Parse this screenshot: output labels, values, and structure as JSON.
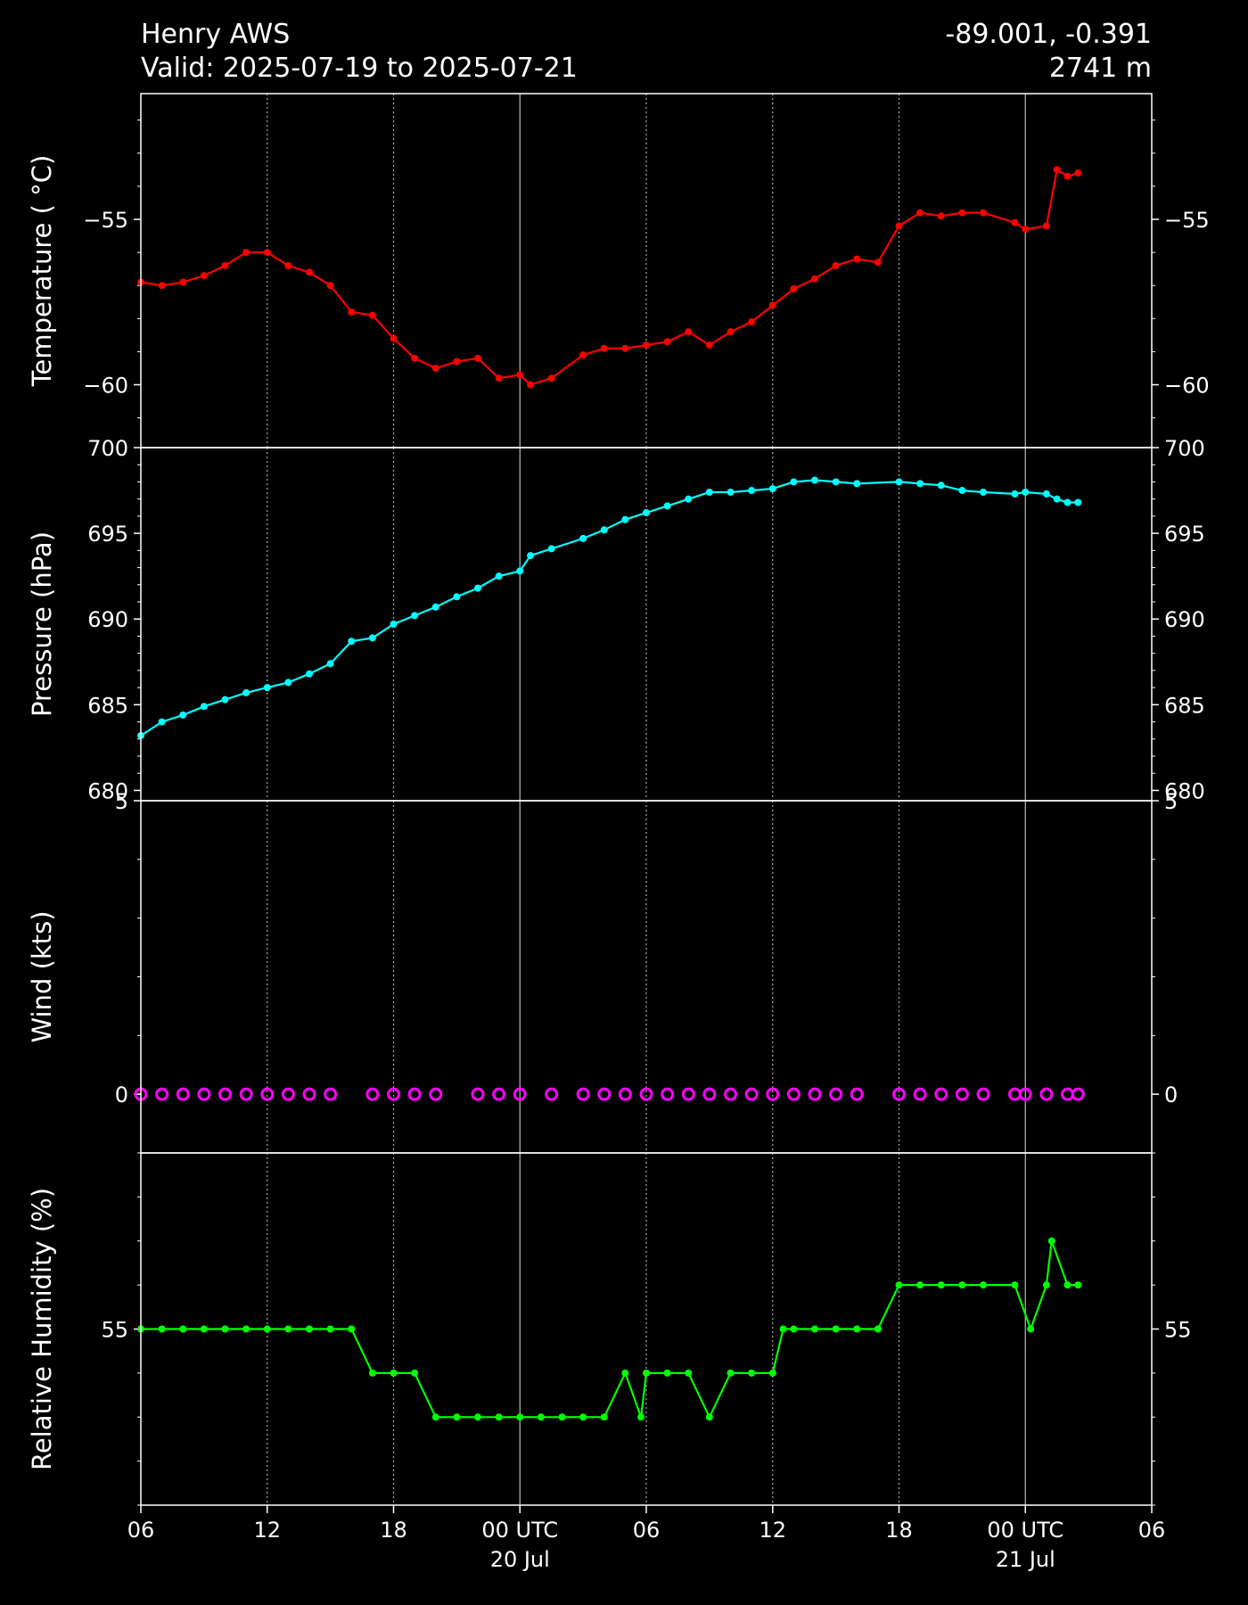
{
  "header": {
    "station": "Henry AWS",
    "valid": "Valid: 2025-07-19 to 2025-07-21",
    "coords": "-89.001, -0.391",
    "elevation": "2741 m"
  },
  "x_axis": {
    "tick_labels": [
      "06",
      "12",
      "18",
      "00 UTC\n20 Jul",
      "06",
      "12",
      "18",
      "00 UTC\n21 Jul",
      "06"
    ],
    "start": "2025-07-19T06:00Z",
    "end": "2025-07-21T06:00Z"
  },
  "colors": {
    "temperature": "#ff0000",
    "pressure": "#00ffff",
    "wind": "#ff00ff",
    "humidity": "#00ff00",
    "axes": "#ffffff",
    "background": "#000000"
  },
  "chart_data": [
    {
      "type": "line",
      "ylabel": "Temperature ($^\\circ$C)",
      "ylim": [
        -61.9,
        -51.2
      ],
      "yticks": [
        -55,
        -60
      ],
      "ytick_labels": [
        "−55",
        "−60"
      ],
      "grid": "vertical",
      "series": [
        {
          "x": [
            "2025-07-19T06:00Z",
            "2025-07-19T07:00Z",
            "2025-07-19T08:00Z",
            "2025-07-19T09:00Z",
            "2025-07-19T10:00Z",
            "2025-07-19T11:00Z",
            "2025-07-19T12:00Z",
            "2025-07-19T13:00Z",
            "2025-07-19T14:00Z",
            "2025-07-19T15:00Z",
            "2025-07-19T16:00Z",
            "2025-07-19T17:00Z",
            "2025-07-19T18:00Z",
            "2025-07-19T19:00Z",
            "2025-07-19T20:00Z",
            "2025-07-19T21:00Z",
            "2025-07-19T22:00Z",
            "2025-07-19T23:00Z",
            "2025-07-20T00:00Z",
            "2025-07-20T00:30Z",
            "2025-07-20T01:30Z",
            "2025-07-20T03:00Z",
            "2025-07-20T04:00Z",
            "2025-07-20T05:00Z",
            "2025-07-20T06:00Z",
            "2025-07-20T07:00Z",
            "2025-07-20T08:00Z",
            "2025-07-20T09:00Z",
            "2025-07-20T10:00Z",
            "2025-07-20T11:00Z",
            "2025-07-20T12:00Z",
            "2025-07-20T13:00Z",
            "2025-07-20T14:00Z",
            "2025-07-20T15:00Z",
            "2025-07-20T16:00Z",
            "2025-07-20T17:00Z",
            "2025-07-20T18:00Z",
            "2025-07-20T19:00Z",
            "2025-07-20T20:00Z",
            "2025-07-20T21:00Z",
            "2025-07-20T22:00Z",
            "2025-07-20T23:30Z",
            "2025-07-21T00:00Z",
            "2025-07-21T01:00Z",
            "2025-07-21T01:30Z",
            "2025-07-21T02:00Z",
            "2025-07-21T02:30Z"
          ],
          "y": [
            -56.9,
            -57.0,
            -56.9,
            -56.7,
            -56.4,
            -56.0,
            -56.0,
            -56.4,
            -56.6,
            -57.0,
            -57.8,
            -57.9,
            -58.6,
            -59.2,
            -59.5,
            -59.3,
            -59.2,
            -59.8,
            -59.7,
            -60.0,
            -59.8,
            -59.1,
            -58.9,
            -58.9,
            -58.8,
            -58.7,
            -58.4,
            -58.8,
            -58.4,
            -58.1,
            -57.6,
            -57.1,
            -56.8,
            -56.4,
            -56.2,
            -56.3,
            -55.2,
            -54.8,
            -54.9,
            -54.8,
            -54.8,
            -55.1,
            -55.3,
            -55.2,
            -53.5,
            -53.7,
            -53.6
          ]
        }
      ]
    },
    {
      "type": "line",
      "ylabel": "Pressure (hPa)",
      "ylim": [
        679.4,
        700.0
      ],
      "yticks": [
        700,
        695,
        690,
        685,
        680
      ],
      "ytick_labels": [
        "700",
        "695",
        "690",
        "685",
        "680"
      ],
      "grid": "vertical",
      "series": [
        {
          "x": [
            "2025-07-19T06:00Z",
            "2025-07-19T07:00Z",
            "2025-07-19T08:00Z",
            "2025-07-19T09:00Z",
            "2025-07-19T10:00Z",
            "2025-07-19T11:00Z",
            "2025-07-19T12:00Z",
            "2025-07-19T13:00Z",
            "2025-07-19T14:00Z",
            "2025-07-19T15:00Z",
            "2025-07-19T16:00Z",
            "2025-07-19T17:00Z",
            "2025-07-19T18:00Z",
            "2025-07-19T19:00Z",
            "2025-07-19T20:00Z",
            "2025-07-19T21:00Z",
            "2025-07-19T22:00Z",
            "2025-07-19T23:00Z",
            "2025-07-20T00:00Z",
            "2025-07-20T00:30Z",
            "2025-07-20T01:30Z",
            "2025-07-20T03:00Z",
            "2025-07-20T04:00Z",
            "2025-07-20T05:00Z",
            "2025-07-20T06:00Z",
            "2025-07-20T07:00Z",
            "2025-07-20T08:00Z",
            "2025-07-20T09:00Z",
            "2025-07-20T10:00Z",
            "2025-07-20T11:00Z",
            "2025-07-20T12:00Z",
            "2025-07-20T13:00Z",
            "2025-07-20T14:00Z",
            "2025-07-20T15:00Z",
            "2025-07-20T16:00Z",
            "2025-07-20T18:00Z",
            "2025-07-20T19:00Z",
            "2025-07-20T20:00Z",
            "2025-07-20T21:00Z",
            "2025-07-20T22:00Z",
            "2025-07-20T23:30Z",
            "2025-07-21T00:00Z",
            "2025-07-21T01:00Z",
            "2025-07-21T01:30Z",
            "2025-07-21T02:00Z",
            "2025-07-21T02:30Z"
          ],
          "y": [
            683.2,
            684.0,
            684.4,
            684.9,
            685.3,
            685.7,
            686.0,
            686.3,
            686.8,
            687.4,
            688.7,
            688.9,
            689.7,
            690.2,
            690.7,
            691.3,
            691.8,
            692.5,
            692.8,
            693.7,
            694.1,
            694.7,
            695.2,
            695.8,
            696.2,
            696.6,
            697.0,
            697.4,
            697.4,
            697.5,
            697.6,
            698.0,
            698.1,
            698.0,
            697.9,
            698.0,
            697.9,
            697.8,
            697.5,
            697.4,
            697.3,
            697.4,
            697.3,
            697.0,
            696.8,
            696.8
          ]
        }
      ]
    },
    {
      "type": "scatter",
      "ylabel": "Wind (kts)",
      "ylim": [
        -1.0,
        5.0
      ],
      "yticks": [
        5,
        0
      ],
      "ytick_labels": [
        "5",
        "0"
      ],
      "grid": "vertical",
      "series": [
        {
          "x": [
            "2025-07-19T06:00Z",
            "2025-07-19T07:00Z",
            "2025-07-19T08:00Z",
            "2025-07-19T09:00Z",
            "2025-07-19T10:00Z",
            "2025-07-19T11:00Z",
            "2025-07-19T12:00Z",
            "2025-07-19T13:00Z",
            "2025-07-19T14:00Z",
            "2025-07-19T15:00Z",
            "2025-07-19T17:00Z",
            "2025-07-19T18:00Z",
            "2025-07-19T19:00Z",
            "2025-07-19T20:00Z",
            "2025-07-19T22:00Z",
            "2025-07-19T23:00Z",
            "2025-07-20T00:00Z",
            "2025-07-20T01:30Z",
            "2025-07-20T03:00Z",
            "2025-07-20T04:00Z",
            "2025-07-20T05:00Z",
            "2025-07-20T06:00Z",
            "2025-07-20T07:00Z",
            "2025-07-20T08:00Z",
            "2025-07-20T09:00Z",
            "2025-07-20T10:00Z",
            "2025-07-20T11:00Z",
            "2025-07-20T12:00Z",
            "2025-07-20T13:00Z",
            "2025-07-20T14:00Z",
            "2025-07-20T15:00Z",
            "2025-07-20T16:00Z",
            "2025-07-20T18:00Z",
            "2025-07-20T19:00Z",
            "2025-07-20T20:00Z",
            "2025-07-20T21:00Z",
            "2025-07-20T22:00Z",
            "2025-07-20T23:30Z",
            "2025-07-21T00:00Z",
            "2025-07-21T01:00Z",
            "2025-07-21T02:00Z",
            "2025-07-21T02:30Z"
          ],
          "y": [
            0,
            0,
            0,
            0,
            0,
            0,
            0,
            0,
            0,
            0,
            0,
            0,
            0,
            0,
            0,
            0,
            0,
            0,
            0,
            0,
            0,
            0,
            0,
            0,
            0,
            0,
            0,
            0,
            0,
            0,
            0,
            0,
            0,
            0,
            0,
            0,
            0,
            0,
            0,
            0,
            0,
            0
          ]
        }
      ]
    },
    {
      "type": "line",
      "ylabel": "Relative Humidity (%)",
      "ylim": [
        51,
        59
      ],
      "yticks": [
        55
      ],
      "ytick_labels": [
        "55"
      ],
      "grid": "vertical",
      "series": [
        {
          "x": [
            "2025-07-19T06:00Z",
            "2025-07-19T07:00Z",
            "2025-07-19T08:00Z",
            "2025-07-19T09:00Z",
            "2025-07-19T10:00Z",
            "2025-07-19T11:00Z",
            "2025-07-19T12:00Z",
            "2025-07-19T13:00Z",
            "2025-07-19T14:00Z",
            "2025-07-19T15:00Z",
            "2025-07-19T16:00Z",
            "2025-07-19T17:00Z",
            "2025-07-19T18:00Z",
            "2025-07-19T19:00Z",
            "2025-07-19T20:00Z",
            "2025-07-19T21:00Z",
            "2025-07-19T22:00Z",
            "2025-07-19T23:00Z",
            "2025-07-20T00:00Z",
            "2025-07-20T01:00Z",
            "2025-07-20T02:00Z",
            "2025-07-20T03:00Z",
            "2025-07-20T04:00Z",
            "2025-07-20T05:00Z",
            "2025-07-20T05:45Z",
            "2025-07-20T06:00Z",
            "2025-07-20T07:00Z",
            "2025-07-20T08:00Z",
            "2025-07-20T09:00Z",
            "2025-07-20T10:00Z",
            "2025-07-20T11:00Z",
            "2025-07-20T12:00Z",
            "2025-07-20T12:30Z",
            "2025-07-20T13:00Z",
            "2025-07-20T14:00Z",
            "2025-07-20T15:00Z",
            "2025-07-20T16:00Z",
            "2025-07-20T17:00Z",
            "2025-07-20T18:00Z",
            "2025-07-20T19:00Z",
            "2025-07-20T20:00Z",
            "2025-07-20T21:00Z",
            "2025-07-20T22:00Z",
            "2025-07-20T23:30Z",
            "2025-07-21T00:15Z",
            "2025-07-21T01:00Z",
            "2025-07-21T01:15Z",
            "2025-07-21T02:00Z",
            "2025-07-21T02:30Z"
          ],
          "y": [
            55,
            55,
            55,
            55,
            55,
            55,
            55,
            55,
            55,
            55,
            55,
            54,
            54,
            54,
            53,
            53,
            53,
            53,
            53,
            53,
            53,
            53,
            53,
            54,
            53,
            54,
            54,
            54,
            53,
            54,
            54,
            54,
            55,
            55,
            55,
            55,
            55,
            55,
            56,
            56,
            56,
            56,
            56,
            56,
            55,
            56,
            57,
            56,
            56
          ]
        }
      ]
    }
  ]
}
